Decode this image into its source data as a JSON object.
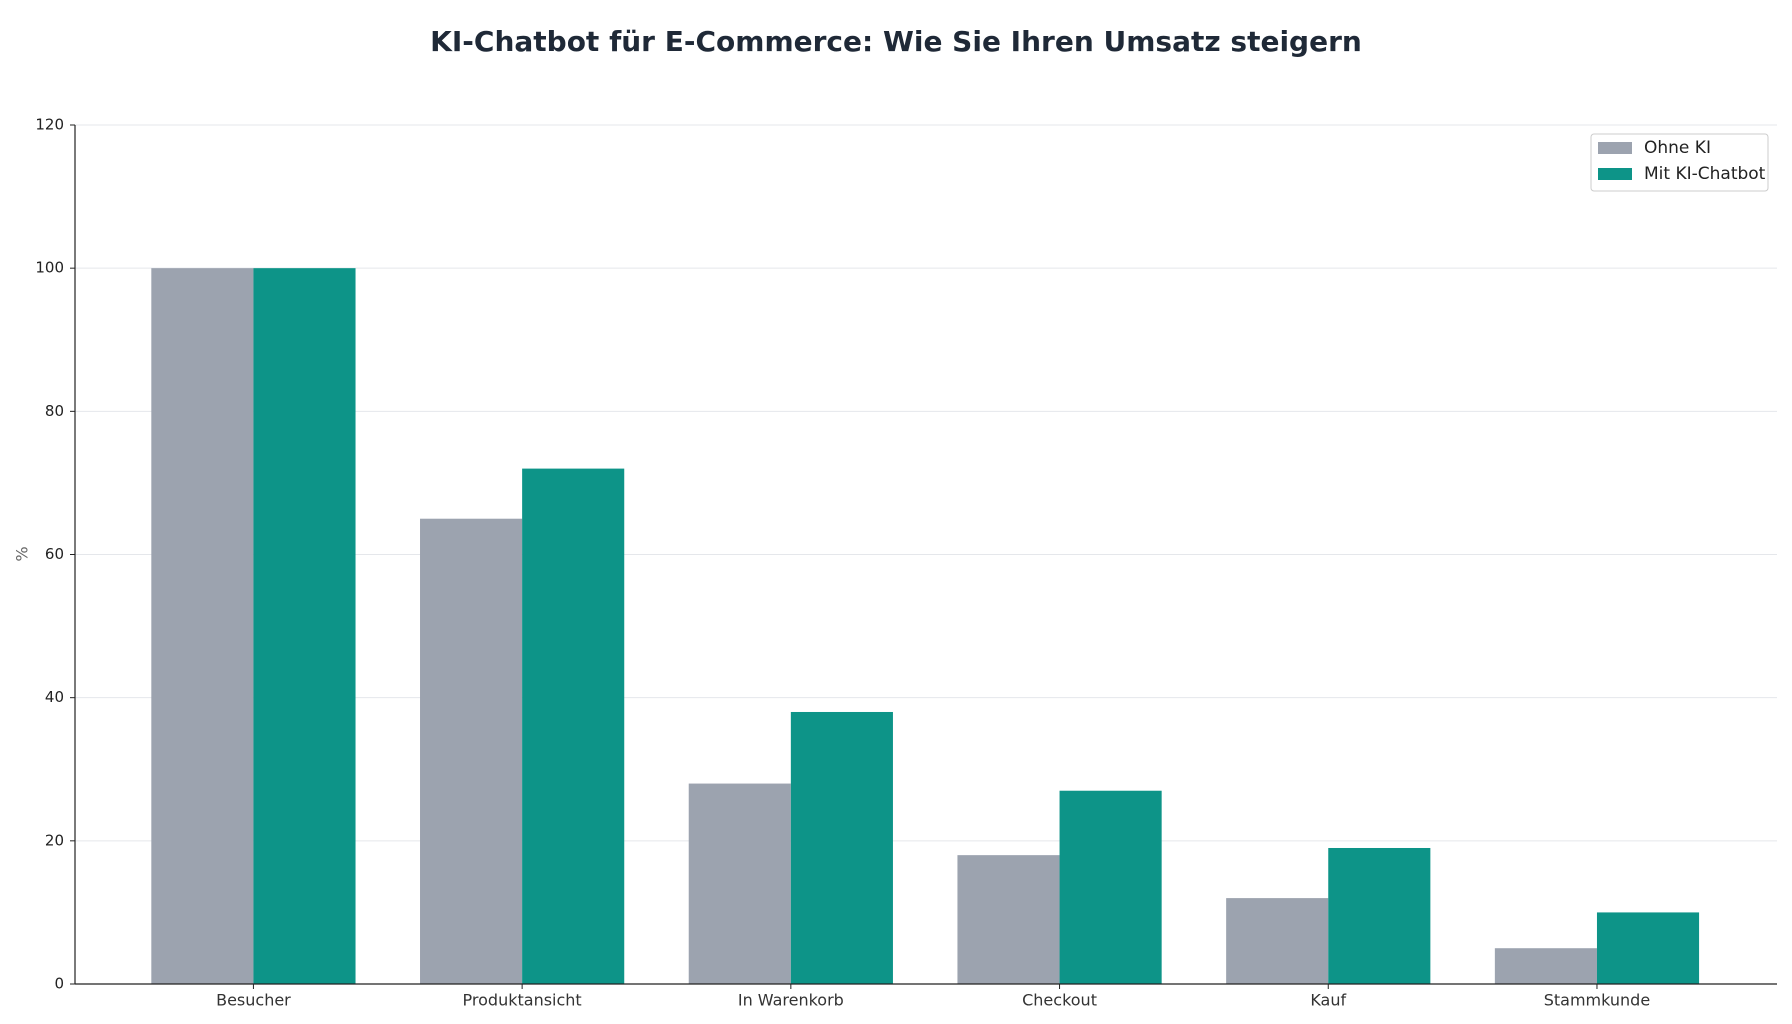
{
  "chart_data": {
    "type": "bar",
    "title": "KI-Chatbot für E-Commerce: Wie Sie Ihren Umsatz steigern",
    "y_label": "%",
    "categories": [
      "Besucher",
      "Produktansicht",
      "In Warenkorb",
      "Checkout",
      "Kauf",
      "Stammkunde"
    ],
    "series": [
      {
        "name": "Ohne KI",
        "color": "#9ca3af",
        "values": [
          100,
          65,
          28,
          18,
          12,
          5
        ]
      },
      {
        "name": "Mit KI-Chatbot",
        "color": "#0d9488",
        "values": [
          100,
          72,
          38,
          27,
          19,
          10
        ]
      }
    ],
    "ylim": [
      0,
      120
    ],
    "yticks": [
      0,
      20,
      40,
      60,
      80,
      100,
      120
    ],
    "grid": true,
    "legend": "upper right"
  }
}
